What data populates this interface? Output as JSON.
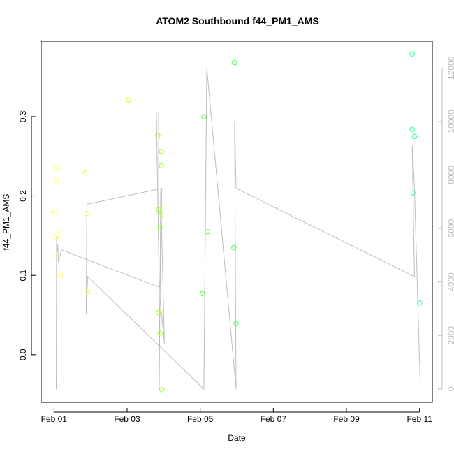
{
  "chart_data": {
    "type": "scatter",
    "title": "ATOM2 Southbound f44_PM1_AMS",
    "xlabel": "Date",
    "ylabel": "f44_PM1_AMS",
    "x_tick_labels": [
      "Feb 01",
      "Feb 03",
      "Feb 05",
      "Feb 07",
      "Feb 09",
      "Feb 11"
    ],
    "x_tick_values_days": [
      0,
      2,
      4,
      6,
      8,
      10
    ],
    "xlim_days": [
      -0.35,
      10.35
    ],
    "ylim": [
      -0.06,
      0.395
    ],
    "y_ticks": [
      0.0,
      0.1,
      0.2,
      0.3
    ],
    "y_tick_labels": [
      "0.0",
      "0.1",
      "0.2",
      "0.3"
    ],
    "y2lim": [
      -500,
      13000
    ],
    "y2_ticks": [
      0,
      2000,
      4000,
      6000,
      8000,
      10000,
      12000
    ],
    "y2_tick_labels": [
      "0",
      "2000",
      "4000",
      "6000",
      "8000",
      "10000",
      "12000"
    ],
    "grid": false,
    "legend": "none",
    "points": [
      {
        "day": 0.02,
        "y": 0.18,
        "color": "#ffff66"
      },
      {
        "day": 0.06,
        "y": 0.219,
        "color": "#ffff66"
      },
      {
        "day": 0.08,
        "y": 0.236,
        "color": "#ffff66"
      },
      {
        "day": 0.06,
        "y": 0.148,
        "color": "#ffff66"
      },
      {
        "day": 0.14,
        "y": 0.157,
        "color": "#ffff66"
      },
      {
        "day": 0.1,
        "y": 0.124,
        "color": "#ffff66"
      },
      {
        "day": 0.18,
        "y": 0.1,
        "color": "#ffff66"
      },
      {
        "day": 0.85,
        "y": 0.229,
        "color": "#f2ff44"
      },
      {
        "day": 0.9,
        "y": 0.178,
        "color": "#f2ff44"
      },
      {
        "day": 0.92,
        "y": 0.079,
        "color": "#f2ff44"
      },
      {
        "day": 2.04,
        "y": 0.321,
        "color": "#c6ff22"
      },
      {
        "day": 2.84,
        "y": 0.276,
        "color": "#9eff1f"
      },
      {
        "day": 2.86,
        "y": 0.183,
        "color": "#9eff1f"
      },
      {
        "day": 2.9,
        "y": 0.16,
        "color": "#9eff1f"
      },
      {
        "day": 2.94,
        "y": 0.256,
        "color": "#9eff1f"
      },
      {
        "day": 2.94,
        "y": 0.238,
        "color": "#9eff1f"
      },
      {
        "day": 2.92,
        "y": 0.176,
        "color": "#9eff1f"
      },
      {
        "day": 2.86,
        "y": 0.053,
        "color": "#9eff1f"
      },
      {
        "day": 2.9,
        "y": 0.027,
        "color": "#9eff1f"
      },
      {
        "day": 2.95,
        "y": -0.044,
        "color": "#9eff1f"
      },
      {
        "day": 4.1,
        "y": 0.3,
        "color": "#55ff33"
      },
      {
        "day": 4.2,
        "y": 0.155,
        "color": "#55ff33"
      },
      {
        "day": 4.06,
        "y": 0.077,
        "color": "#55ff33"
      },
      {
        "day": 4.94,
        "y": 0.368,
        "color": "#44ff44"
      },
      {
        "day": 4.92,
        "y": 0.135,
        "color": "#44ff44"
      },
      {
        "day": 4.98,
        "y": 0.039,
        "color": "#44ff44"
      },
      {
        "day": 9.8,
        "y": 0.379,
        "color": "#2bff99"
      },
      {
        "day": 9.8,
        "y": 0.284,
        "color": "#2bff99"
      },
      {
        "day": 9.86,
        "y": 0.275,
        "color": "#2bff99"
      },
      {
        "day": 9.82,
        "y": 0.204,
        "color": "#2bff99"
      },
      {
        "day": 10.0,
        "y": 0.065,
        "color": "#2bff99"
      }
    ],
    "secondary_line": {
      "color": "#bebebe",
      "points": [
        {
          "day": 0.06,
          "y2": 0
        },
        {
          "day": 0.07,
          "y2": 5700
        },
        {
          "day": 0.08,
          "y2": 5100
        },
        {
          "day": 0.1,
          "y2": 5400
        },
        {
          "day": 0.12,
          "y2": 4700
        },
        {
          "day": 0.2,
          "y2": 5200
        },
        {
          "day": 2.88,
          "y2": 3800
        },
        {
          "day": 2.8,
          "y2": 10350
        },
        {
          "day": 2.86,
          "y2": 10350
        },
        {
          "day": 2.88,
          "y2": 0
        },
        {
          "day": 2.92,
          "y2": 7400
        },
        {
          "day": 3.02,
          "y2": 1700
        },
        {
          "day": 2.9,
          "y2": 3400
        },
        {
          "day": 2.95,
          "y2": 7500
        },
        {
          "day": 0.9,
          "y2": 6900
        },
        {
          "day": 0.88,
          "y2": 2800
        },
        {
          "day": 0.92,
          "y2": 4200
        },
        {
          "day": 4.1,
          "y2": 0
        },
        {
          "day": 4.18,
          "y2": 12000
        },
        {
          "day": 4.98,
          "y2": 0
        },
        {
          "day": 4.94,
          "y2": 10000
        },
        {
          "day": 4.98,
          "y2": 7500
        },
        {
          "day": 9.86,
          "y2": 4200
        },
        {
          "day": 9.8,
          "y2": 9100
        },
        {
          "day": 9.86,
          "y2": 7500
        },
        {
          "day": 10.02,
          "y2": 100
        }
      ]
    }
  }
}
